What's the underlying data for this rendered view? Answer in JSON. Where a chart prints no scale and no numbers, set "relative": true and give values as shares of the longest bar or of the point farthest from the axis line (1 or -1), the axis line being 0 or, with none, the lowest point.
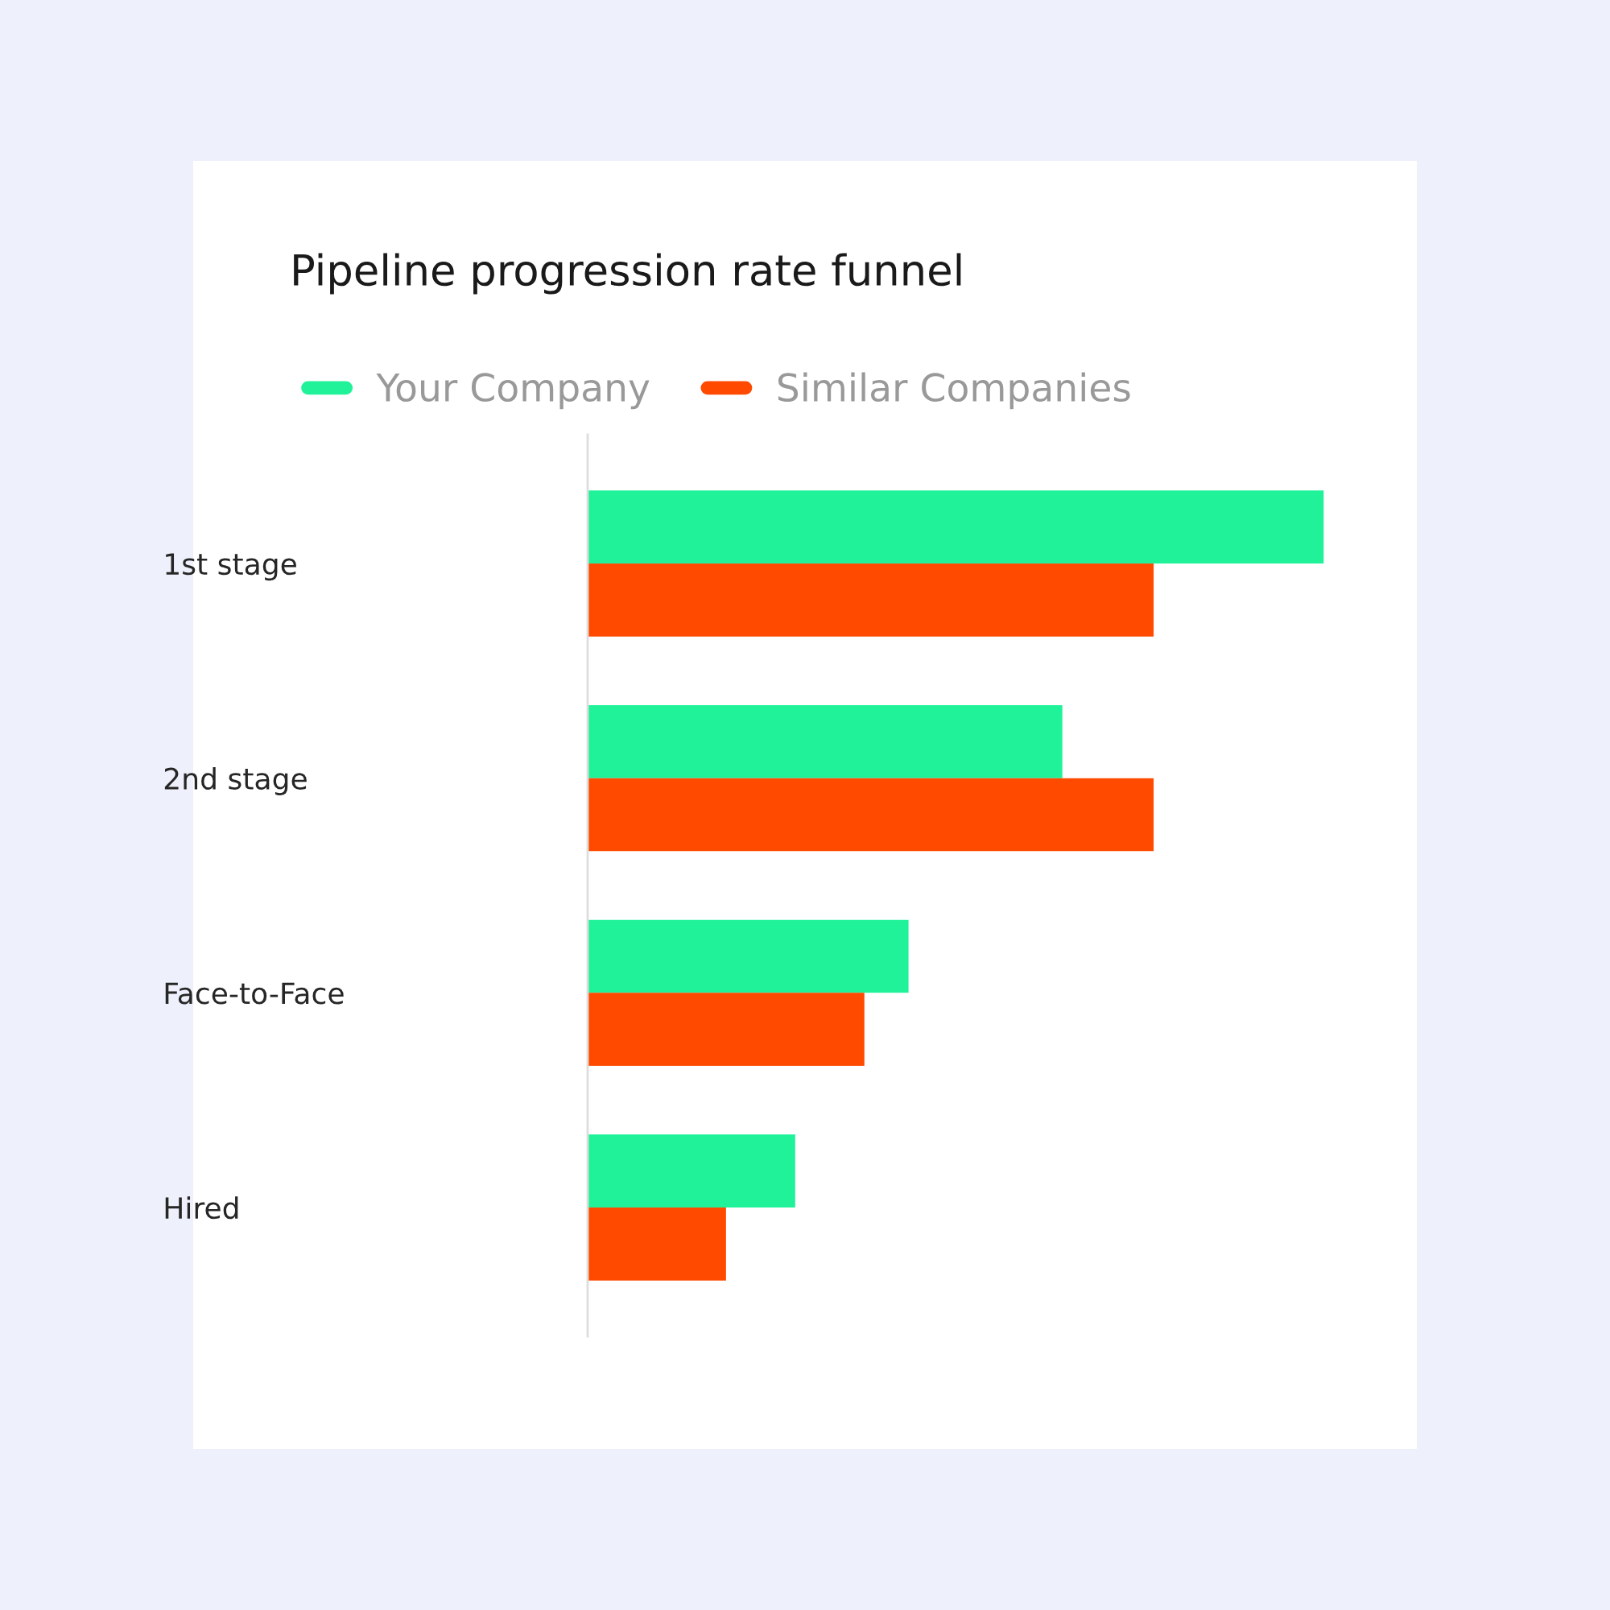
{
  "chart_data": {
    "type": "bar",
    "orientation": "horizontal",
    "relative": true,
    "title": "Pipeline progression rate funnel",
    "categories": [
      "1st stage",
      "2nd stage",
      "Face-to-Face",
      "Hired"
    ],
    "series": [
      {
        "name": "Your Company",
        "color": "#20f29a",
        "values": [
          1,
          0.645,
          0.436,
          0.282
        ]
      },
      {
        "name": "Similar Companies",
        "color": "#ff4a00",
        "values": [
          0.769,
          0.769,
          0.376,
          0.188
        ]
      }
    ],
    "legend": "top left",
    "grid": false
  }
}
